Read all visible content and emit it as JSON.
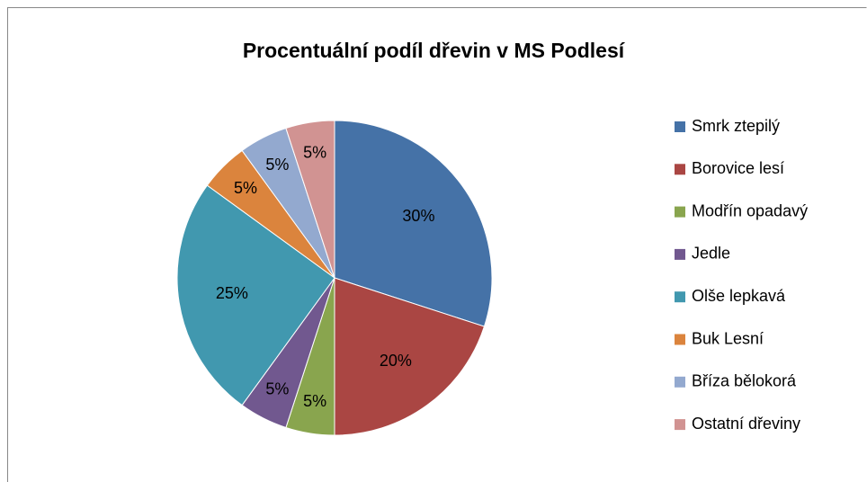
{
  "chart_data": {
    "type": "pie",
    "title": "Procentuální podíl dřevin v MS Podlesí",
    "categories": [
      "Smrk ztepilý",
      "Borovice lesí",
      "Modřín opadavý",
      "Jedle",
      "Olše lepkavá",
      "Buk Lesní",
      "Bříza bělokorá",
      "Ostatní dřeviny"
    ],
    "values": [
      30,
      20,
      5,
      5,
      25,
      5,
      5,
      5
    ],
    "value_labels": [
      "30%",
      "20%",
      "5%",
      "5%",
      "25%",
      "5%",
      "5%",
      "5%"
    ],
    "colors": [
      "#4572A7",
      "#AA4643",
      "#89A54E",
      "#71588F",
      "#4198AF",
      "#DB843D",
      "#93A9CF",
      "#D19392"
    ],
    "legend": "right"
  }
}
